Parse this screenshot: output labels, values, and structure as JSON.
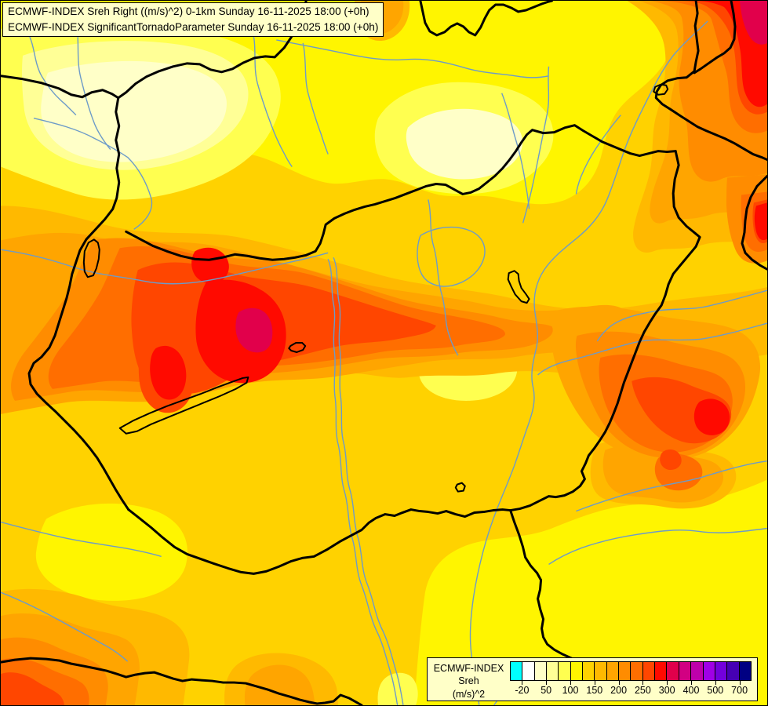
{
  "title_box": {
    "line1": "ECMWF-INDEX Sreh Right ((m/s)^2) 0-1km Sunday 16-11-2025 18:00 (+0h)",
    "line2": "ECMWF-INDEX SignificantTornadoParameter Sunday 16-11-2025 18:00 (+0h)"
  },
  "legend": {
    "title": "ECMWF-INDEX",
    "parameter": "Sreh",
    "unit": "(m/s)^2",
    "colors": [
      "#00FFFF",
      "#FFFFFF",
      "#FFFFC8",
      "#FFFF96",
      "#FFFF50",
      "#FFF500",
      "#FFD200",
      "#FFB900",
      "#FFA500",
      "#FF8C00",
      "#FF6E00",
      "#FF4600",
      "#FF0A00",
      "#E1004B",
      "#D20082",
      "#BE00AA",
      "#A000E6",
      "#7300DC",
      "#4600B4",
      "#000082"
    ],
    "ticks": [
      "-20",
      "50",
      "100",
      "150",
      "200",
      "250",
      "300",
      "400",
      "500",
      "700"
    ]
  },
  "map": {
    "frame_color": "#000000",
    "border_color": "#000000",
    "river_color": "#6D9BC8",
    "lake_outline_color": "#000000"
  }
}
